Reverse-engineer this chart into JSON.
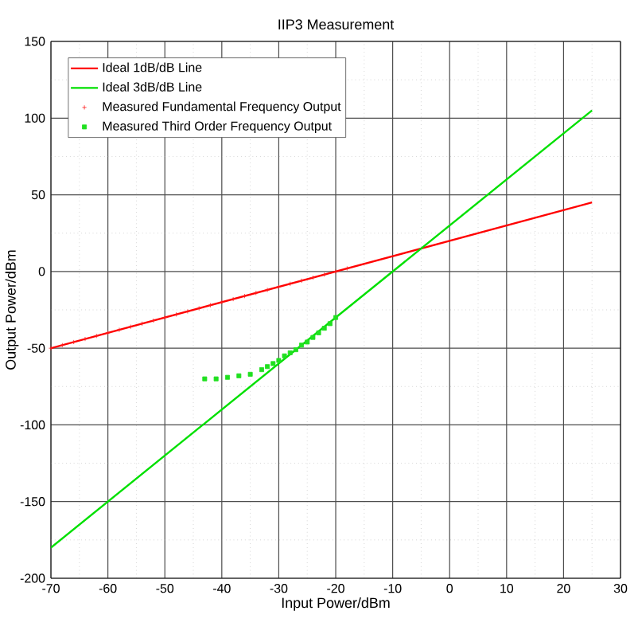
{
  "chart_data": {
    "type": "line",
    "title": "IIP3 Measurement",
    "xlabel": "Input Power/dBm",
    "ylabel": "Output Power/dBm",
    "xlim": [
      -70,
      30
    ],
    "ylim": [
      -200,
      150
    ],
    "xticks": [
      -70,
      -60,
      -50,
      -40,
      -30,
      -20,
      -10,
      0,
      10,
      20,
      30
    ],
    "yticks": [
      -200,
      -150,
      -100,
      -50,
      0,
      50,
      100,
      150
    ],
    "grid": true,
    "legend": "top left",
    "series": [
      {
        "name": "Ideal 1dB/dB Line",
        "color": "#ff0000",
        "x": [
          -70,
          25
        ],
        "values": [
          -50,
          45
        ]
      },
      {
        "name": "Ideal 3dB/dB Line",
        "color": "#00e000",
        "x": [
          -70,
          25
        ],
        "values": [
          -180,
          105
        ]
      },
      {
        "name": "Measured Fundamental Frequency Output",
        "type": "scatter",
        "marker": "cross",
        "color": "#ff2020",
        "x": [
          -70,
          -68,
          -66,
          -64,
          -62,
          -60,
          -58,
          -56,
          -54,
          -52,
          -50,
          -48,
          -46,
          -44,
          -42,
          -40,
          -38,
          -36,
          -34,
          -32,
          -30,
          -28,
          -26,
          -24,
          -22,
          -20,
          -18
        ],
        "values": [
          -50,
          -48,
          -46,
          -44,
          -42,
          -40,
          -38,
          -36,
          -34,
          -32,
          -30,
          -28,
          -26,
          -24,
          -22,
          -20,
          -18,
          -16,
          -14,
          -12,
          -10,
          -8,
          -6,
          -4,
          -2,
          0,
          2
        ]
      },
      {
        "name": "Measured Third Order Frequency Output",
        "type": "scatter",
        "marker": "square",
        "color": "#20e020",
        "x": [
          -43,
          -41,
          -39,
          -37,
          -35,
          -33,
          -32,
          -31,
          -30,
          -29,
          -28,
          -27,
          -26,
          -25,
          -24,
          -23,
          -22,
          -21,
          -20
        ],
        "values": [
          -70,
          -70,
          -69,
          -68,
          -67,
          -64,
          -62,
          -60,
          -58,
          -55,
          -53,
          -51,
          -48,
          -46,
          -43,
          -40,
          -37,
          -34,
          -30
        ]
      }
    ]
  }
}
